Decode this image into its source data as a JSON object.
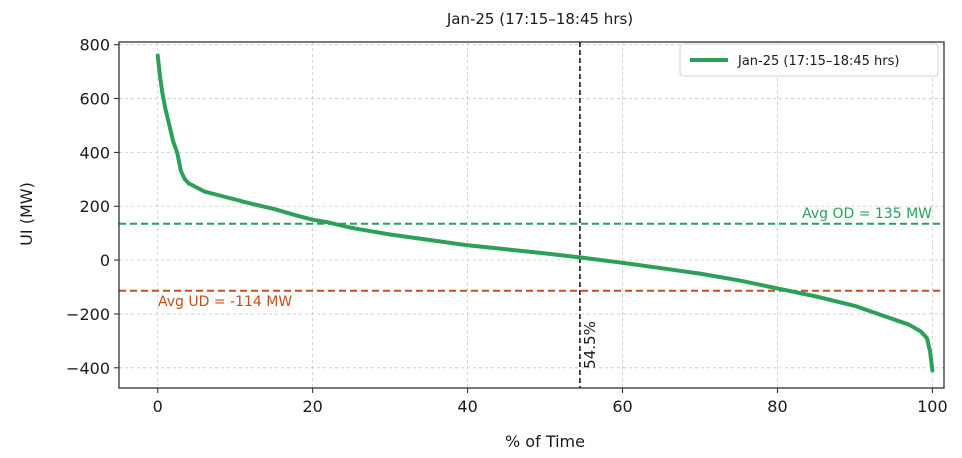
{
  "chart_data": {
    "type": "line",
    "title": "Jan-25 (17:15–18:45 hrs)",
    "xlabel": "% of Time",
    "ylabel": "UI (MW)",
    "xlim": [
      -5,
      101.5
    ],
    "ylim": [
      -475,
      810
    ],
    "xticks": [
      0,
      20,
      40,
      60,
      80,
      100
    ],
    "yticks": [
      -400,
      -200,
      0,
      200,
      400,
      600,
      800
    ],
    "ytick_labels": [
      "−400",
      "−200",
      "0",
      "200",
      "400",
      "600",
      "800"
    ],
    "grid": true,
    "legend": {
      "position": "top-right",
      "entries": [
        "Jan-25 (17:15–18:45 hrs)"
      ]
    },
    "series": [
      {
        "name": "Jan-25 (17:15–18:45 hrs)",
        "color": "#2ca05a",
        "x": [
          0,
          0.3,
          0.6,
          1,
          1.5,
          2,
          2.5,
          3,
          3.5,
          4,
          5,
          6,
          8,
          10,
          12,
          15,
          18,
          20,
          22,
          25,
          30,
          35,
          40,
          45,
          50,
          54.5,
          60,
          65,
          70,
          75,
          80,
          85,
          90,
          93,
          95,
          97,
          98.5,
          99.3,
          99.7,
          100
        ],
        "y": [
          760,
          680,
          620,
          560,
          500,
          440,
          400,
          330,
          300,
          285,
          270,
          255,
          240,
          225,
          210,
          190,
          165,
          150,
          140,
          120,
          95,
          75,
          55,
          40,
          25,
          10,
          -10,
          -30,
          -50,
          -75,
          -105,
          -135,
          -170,
          -200,
          -220,
          -240,
          -265,
          -290,
          -340,
          -410
        ]
      }
    ],
    "reference_lines": {
      "avg_od": {
        "value": 135,
        "label": "Avg OD = 135 MW",
        "color": "#2ca05a"
      },
      "avg_ud": {
        "value": -114,
        "label": "Avg UD = -114 MW",
        "color": "#c1501e"
      },
      "vertical": {
        "x": 54.5,
        "label": "54.5%",
        "color": "#1a1a1a"
      }
    }
  }
}
